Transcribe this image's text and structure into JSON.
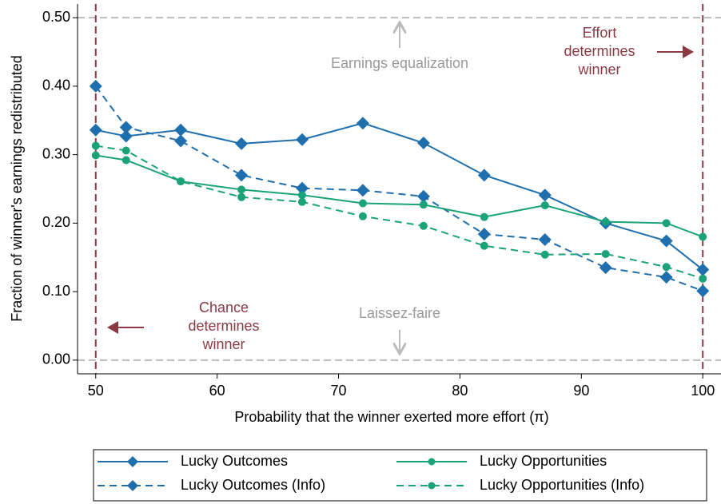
{
  "chart_data": {
    "type": "line",
    "x_label": "Probability that the winner exerted more effort (π)",
    "y_label": "Fraction of winner's earnings redistributed",
    "x": [
      50,
      52.5,
      57,
      62,
      67,
      72,
      77,
      82,
      87,
      92,
      97,
      100
    ],
    "series": [
      {
        "name": "Lucky Outcomes",
        "color": "#1f6fae",
        "dash": false,
        "marker": "diamond",
        "values": [
          0.336,
          0.327,
          0.336,
          0.316,
          0.322,
          0.346,
          0.317,
          0.27,
          0.241,
          0.2,
          0.174,
          0.132
        ]
      },
      {
        "name": "Lucky Outcomes (Info)",
        "color": "#1f6fae",
        "dash": true,
        "marker": "diamond",
        "values": [
          0.4,
          0.34,
          0.32,
          0.27,
          0.251,
          0.248,
          0.239,
          0.184,
          0.176,
          0.135,
          0.121,
          0.101
        ]
      },
      {
        "name": "Lucky Opportunities",
        "color": "#1aa37a",
        "dash": false,
        "marker": "circle",
        "values": [
          0.299,
          0.292,
          0.261,
          0.249,
          0.241,
          0.229,
          0.227,
          0.209,
          0.226,
          0.202,
          0.2,
          0.18
        ]
      },
      {
        "name": "Lucky Opportunities (Info)",
        "color": "#1aa37a",
        "dash": true,
        "marker": "circle",
        "values": [
          0.313,
          0.306,
          0.261,
          0.238,
          0.231,
          0.21,
          0.196,
          0.167,
          0.154,
          0.155,
          0.136,
          0.119
        ]
      }
    ],
    "xlim": [
      48.5,
      101.5
    ],
    "ylim": [
      -0.02,
      0.52
    ],
    "xticks": [
      50,
      60,
      70,
      80,
      90,
      100
    ],
    "yticks": [
      {
        "value": 0,
        "label": "0.00"
      },
      {
        "value": 0.1,
        "label": "0.10"
      },
      {
        "value": 0.2,
        "label": "0.20"
      },
      {
        "value": 0.3,
        "label": "0.30"
      },
      {
        "value": 0.4,
        "label": "0.40"
      },
      {
        "value": 0.5,
        "label": "0.50"
      }
    ],
    "hlines": [
      0,
      0.5
    ],
    "vlines": [
      50,
      100
    ],
    "annotations": {
      "equalization": [
        "Earnings equalization"
      ],
      "laissez_faire": [
        "Laissez-faire"
      ],
      "effort": [
        "Effort",
        "determines",
        "winner"
      ],
      "chance": [
        "Chance",
        "determines",
        "winner"
      ]
    },
    "legend": "bottom"
  }
}
